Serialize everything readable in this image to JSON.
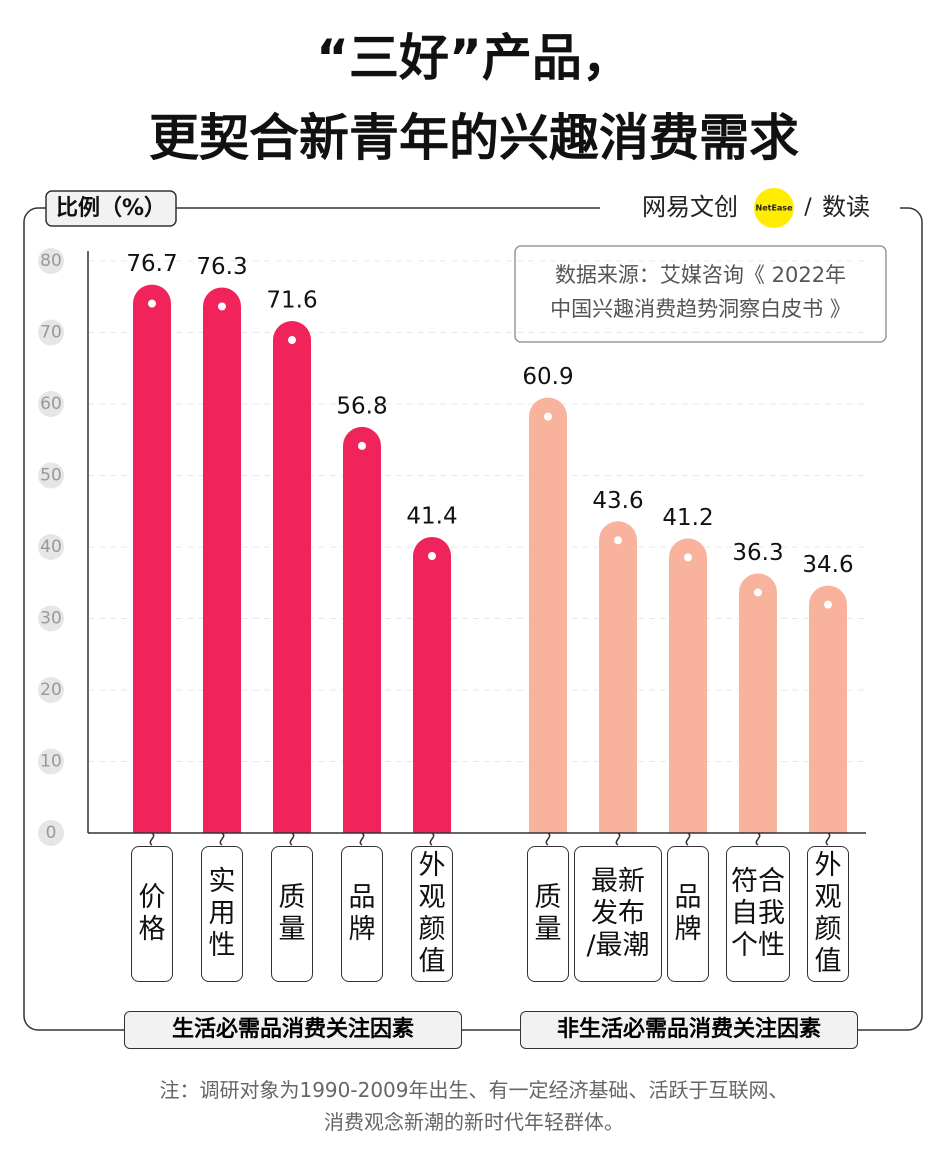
{
  "chart_data": {
    "type": "bar",
    "title": "“三好”产品，\n更契合新青年的兴趣消费需求",
    "y_label": "比例（%）",
    "brand": {
      "name": "网易文创",
      "logo": "NetEase",
      "separator": "/",
      "column": "数读"
    },
    "source": "数据来源：艾媒咨询《 2022年\n中国兴趣消费趋势洞察白皮书 》",
    "ylim": [
      0,
      80
    ],
    "yticks": [
      0,
      10,
      20,
      30,
      40,
      50,
      60,
      70,
      80
    ],
    "grid": true,
    "groups": [
      {
        "name": "生活必需品消费关注因素",
        "color": "#f0245a",
        "categories": [
          "价\n格",
          "实\n用\n性",
          "质\n量",
          "品\n牌",
          "外\n观\n颜\n值"
        ],
        "values": [
          76.7,
          76.3,
          71.6,
          56.8,
          41.4
        ]
      },
      {
        "name": "非生活必需品消费关注因素",
        "color": "#f9b29c",
        "categories": [
          "质\n量",
          "最新\n发布\n/最潮",
          "品\n牌",
          "符合\n自我\n个性",
          "外\n观\n颜\n值"
        ],
        "values": [
          60.9,
          43.6,
          41.2,
          36.3,
          34.6
        ]
      }
    ],
    "note": "注：调研对象为1990-2009年出生、有一定经济基础、活跃于互联网、\n消费观念新潮的新时代年轻群体。"
  }
}
